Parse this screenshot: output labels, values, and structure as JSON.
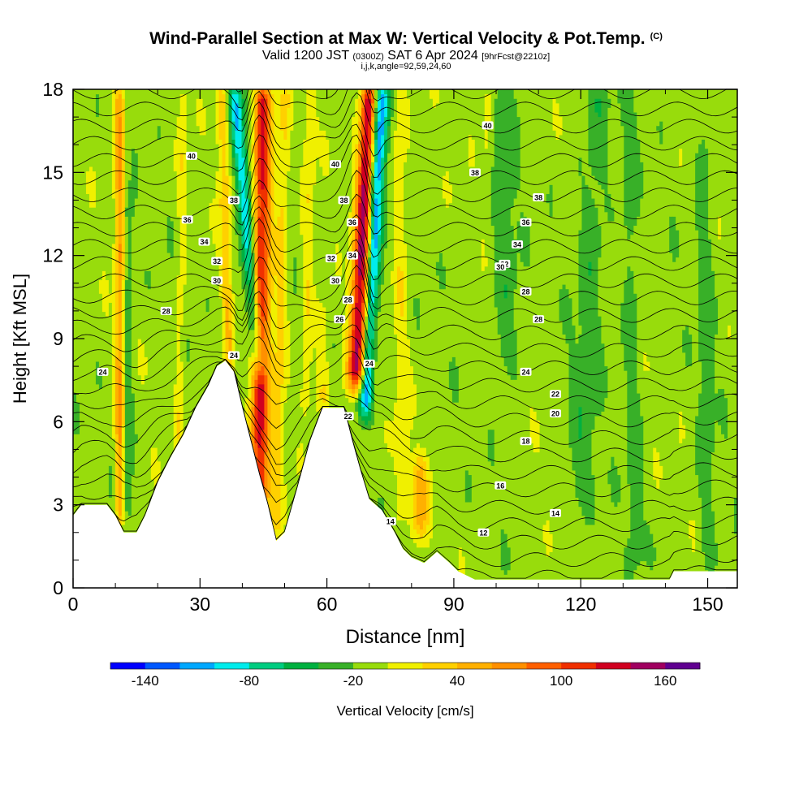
{
  "title": {
    "main": "Wind-Parallel Section at Max W: Vertical Velocity & Pot.Temp.",
    "copyright": "(C)",
    "valid_prefix": "Valid 1200 JST",
    "valid_utc": "(0300Z)",
    "valid_date": "SAT 6 Apr 2024",
    "forecast": "[9hrFcst@2210z]",
    "params": "i,j,k,angle=92,59,24,60"
  },
  "chart_data": {
    "type": "heatmap",
    "title": "Wind-Parallel Section at Max W: Vertical Velocity & Pot.Temp.",
    "xlabel": "Distance [nm]",
    "ylabel": "Height [Kft MSL]",
    "xlim": [
      0,
      157
    ],
    "ylim": [
      0,
      18
    ],
    "x_ticks": [
      0,
      30,
      60,
      90,
      120,
      150
    ],
    "y_ticks": [
      0,
      3,
      6,
      9,
      12,
      15,
      18
    ],
    "grid": false,
    "colorbar": {
      "label": "Vertical Velocity [cm/s]",
      "tick_labels": [
        -140,
        -80,
        -20,
        40,
        100,
        160
      ],
      "bounds": [
        -160,
        -140,
        -120,
        -100,
        -80,
        -60,
        -40,
        -20,
        0,
        20,
        40,
        60,
        80,
        100,
        120,
        140,
        160,
        180
      ],
      "colors": [
        "#0000ff",
        "#0058ff",
        "#00a8ff",
        "#00ecec",
        "#00cc80",
        "#00b040",
        "#38b028",
        "#98dc0c",
        "#f0f000",
        "#ffd000",
        "#ffb000",
        "#ff9000",
        "#ff6000",
        "#f03000",
        "#d00020",
        "#a00060",
        "#600090"
      ],
      "position": "bottom"
    },
    "background_value": -10,
    "terrain": [
      [
        0,
        2.6
      ],
      [
        2,
        3.0
      ],
      [
        5,
        3.0
      ],
      [
        8,
        3.0
      ],
      [
        10,
        2.6
      ],
      [
        12,
        2.0
      ],
      [
        15,
        2.0
      ],
      [
        17,
        2.6
      ],
      [
        20,
        3.8
      ],
      [
        23,
        4.7
      ],
      [
        26,
        5.5
      ],
      [
        29,
        6.5
      ],
      [
        32,
        7.3
      ],
      [
        34,
        8.0
      ],
      [
        36,
        8.2
      ],
      [
        38,
        7.8
      ],
      [
        40,
        6.5
      ],
      [
        42,
        5.3
      ],
      [
        44,
        4.1
      ],
      [
        46,
        3.0
      ],
      [
        48,
        1.7
      ],
      [
        50,
        2.0
      ],
      [
        53,
        3.6
      ],
      [
        56,
        5.3
      ],
      [
        59,
        6.5
      ],
      [
        62,
        6.5
      ],
      [
        64,
        6.5
      ],
      [
        66,
        5.3
      ],
      [
        68,
        4.2
      ],
      [
        70,
        3.2
      ],
      [
        73,
        2.8
      ],
      [
        76,
        2.0
      ],
      [
        78,
        1.4
      ],
      [
        80,
        1.1
      ],
      [
        83,
        0.9
      ],
      [
        86,
        1.3
      ],
      [
        89,
        0.9
      ],
      [
        91,
        0.6
      ],
      [
        95,
        0.3
      ],
      [
        110,
        0.3
      ],
      [
        130,
        0.3
      ],
      [
        141,
        0.3
      ],
      [
        142,
        0.6
      ],
      [
        157,
        0.6
      ]
    ],
    "updrafts": [
      {
        "x": 11,
        "w": 1.0,
        "w_top": 1.2,
        "amp": 70,
        "h0": 2.5,
        "h1": 18,
        "x_top": 11
      },
      {
        "x": 13,
        "w": 1.2,
        "w_top": 1.2,
        "amp": -25,
        "h0": 2.5,
        "h1": 14,
        "x_top": 13
      },
      {
        "x": 25,
        "w": 1.0,
        "w_top": 1.0,
        "amp": 22,
        "h0": 5.0,
        "h1": 18,
        "x_top": 26
      },
      {
        "x": 37,
        "w": 1.1,
        "w_top": 1.4,
        "amp": 45,
        "h0": 8.0,
        "h1": 18,
        "x_top": 35
      },
      {
        "x": 44,
        "w": 1.6,
        "w_top": 1.6,
        "amp": -90,
        "h0": 8.0,
        "h1": 18,
        "x_top": 38
      },
      {
        "x": 44,
        "w": 2.2,
        "w_top": 2.0,
        "amp": 135,
        "h0": 3.0,
        "h1": 18,
        "x_top": 45
      },
      {
        "x": 48,
        "w": 1.6,
        "w_top": 1.4,
        "amp": 35,
        "h0": 2.0,
        "h1": 18,
        "x_top": 50
      },
      {
        "x": 55,
        "w": 1.4,
        "w_top": 1.4,
        "amp": 28,
        "h0": 6.5,
        "h1": 18,
        "x_top": 56
      },
      {
        "x": 59,
        "w": 1.5,
        "w_top": 1.5,
        "amp": 30,
        "h0": 6.5,
        "h1": 10,
        "x_top": 59
      },
      {
        "x": 69,
        "w": 1.5,
        "w_top": 1.8,
        "amp": -110,
        "h0": 6.5,
        "h1": 18,
        "x_top": 73
      },
      {
        "x": 67,
        "w": 2.2,
        "w_top": 1.8,
        "amp": 160,
        "h0": 7.5,
        "h1": 18,
        "x_top": 70
      },
      {
        "x": 82,
        "w": 2.0,
        "w_top": 1.5,
        "amp": 55,
        "h0": 2.0,
        "h1": 4.5,
        "x_top": 82
      },
      {
        "x": 78,
        "w": 1.6,
        "w_top": 1.6,
        "amp": 25,
        "h0": 3.0,
        "h1": 18,
        "x_top": 77
      },
      {
        "x": 98,
        "w": 1.4,
        "w_top": 1.4,
        "amp": 22,
        "h0": 14.5,
        "h1": 18,
        "x_top": 98
      },
      {
        "x": 103,
        "w": 3.0,
        "w_top": 3.0,
        "amp": -24,
        "h0": 8.0,
        "h1": 18,
        "x_top": 101
      },
      {
        "x": 120,
        "w": 3.5,
        "w_top": 3.0,
        "amp": -22,
        "h0": 3.0,
        "h1": 18,
        "x_top": 124
      },
      {
        "x": 133,
        "w": 2.0,
        "w_top": 2.0,
        "amp": -20,
        "h0": 1.0,
        "h1": 18,
        "x_top": 131
      },
      {
        "x": 150,
        "w": 2.0,
        "w_top": 2.0,
        "amp": -20,
        "h0": 1.0,
        "h1": 18,
        "x_top": 149
      }
    ],
    "theta_contour_labels": [
      {
        "text": "40",
        "x": 28,
        "y": 15.6
      },
      {
        "text": "40",
        "x": 62,
        "y": 15.3
      },
      {
        "text": "40",
        "x": 98,
        "y": 16.7
      },
      {
        "text": "38",
        "x": 38,
        "y": 14.0
      },
      {
        "text": "38",
        "x": 64,
        "y": 14.0
      },
      {
        "text": "38",
        "x": 95,
        "y": 15.0
      },
      {
        "text": "38",
        "x": 110,
        "y": 14.1
      },
      {
        "text": "36",
        "x": 27,
        "y": 13.3
      },
      {
        "text": "36",
        "x": 66,
        "y": 13.2
      },
      {
        "text": "36",
        "x": 107,
        "y": 13.2
      },
      {
        "text": "34",
        "x": 31,
        "y": 12.5
      },
      {
        "text": "34",
        "x": 66,
        "y": 12.0
      },
      {
        "text": "34",
        "x": 105,
        "y": 12.4
      },
      {
        "text": "32",
        "x": 34,
        "y": 11.8
      },
      {
        "text": "32",
        "x": 61,
        "y": 11.9
      },
      {
        "text": "32",
        "x": 102,
        "y": 11.7
      },
      {
        "text": "30",
        "x": 34,
        "y": 11.1
      },
      {
        "text": "30",
        "x": 62,
        "y": 11.1
      },
      {
        "text": "30",
        "x": 101,
        "y": 11.6
      },
      {
        "text": "28",
        "x": 22,
        "y": 10.0
      },
      {
        "text": "28",
        "x": 65,
        "y": 10.4
      },
      {
        "text": "28",
        "x": 107,
        "y": 10.7
      },
      {
        "text": "28",
        "x": 110,
        "y": 9.7
      },
      {
        "text": "26",
        "x": 63,
        "y": 9.7
      },
      {
        "text": "24",
        "x": 7,
        "y": 7.8
      },
      {
        "text": "24",
        "x": 38,
        "y": 8.4
      },
      {
        "text": "24",
        "x": 70,
        "y": 8.1
      },
      {
        "text": "24",
        "x": 107,
        "y": 7.8
      },
      {
        "text": "22",
        "x": 65,
        "y": 6.2
      },
      {
        "text": "22",
        "x": 114,
        "y": 7.0
      },
      {
        "text": "20",
        "x": 114,
        "y": 6.3
      },
      {
        "text": "18",
        "x": 107,
        "y": 5.3
      },
      {
        "text": "16",
        "x": 101,
        "y": 3.7
      },
      {
        "text": "14",
        "x": 75,
        "y": 2.4
      },
      {
        "text": "14",
        "x": 114,
        "y": 2.7
      },
      {
        "text": "12",
        "x": 97,
        "y": 2.0
      }
    ]
  }
}
